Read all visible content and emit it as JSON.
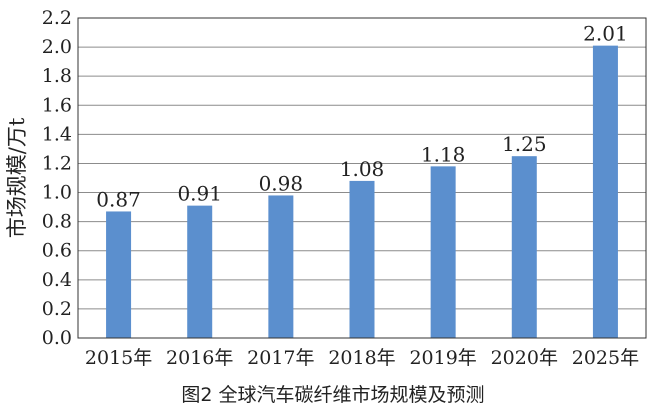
{
  "caption": "图2 全球汽车碳纤维市场规模及预测",
  "chart_data": {
    "type": "bar",
    "categories": [
      "2015年",
      "2016年",
      "2017年",
      "2018年",
      "2019年",
      "2020年",
      "2025年"
    ],
    "values": [
      0.87,
      0.91,
      0.98,
      1.08,
      1.18,
      1.25,
      2.01
    ],
    "data_labels": [
      "0.87",
      "0.91",
      "0.98",
      "1.08",
      "1.18",
      "1.25",
      "2.01"
    ],
    "ylabel": "市场规模/万t",
    "xlabel": "",
    "ylim": [
      0,
      2.2
    ],
    "yticks": [
      "0.0",
      "0.2",
      "0.4",
      "0.6",
      "0.8",
      "1.0",
      "1.2",
      "1.4",
      "1.6",
      "1.8",
      "2.0",
      "2.2"
    ],
    "grid": true,
    "bar_color": "#5b8fce"
  }
}
